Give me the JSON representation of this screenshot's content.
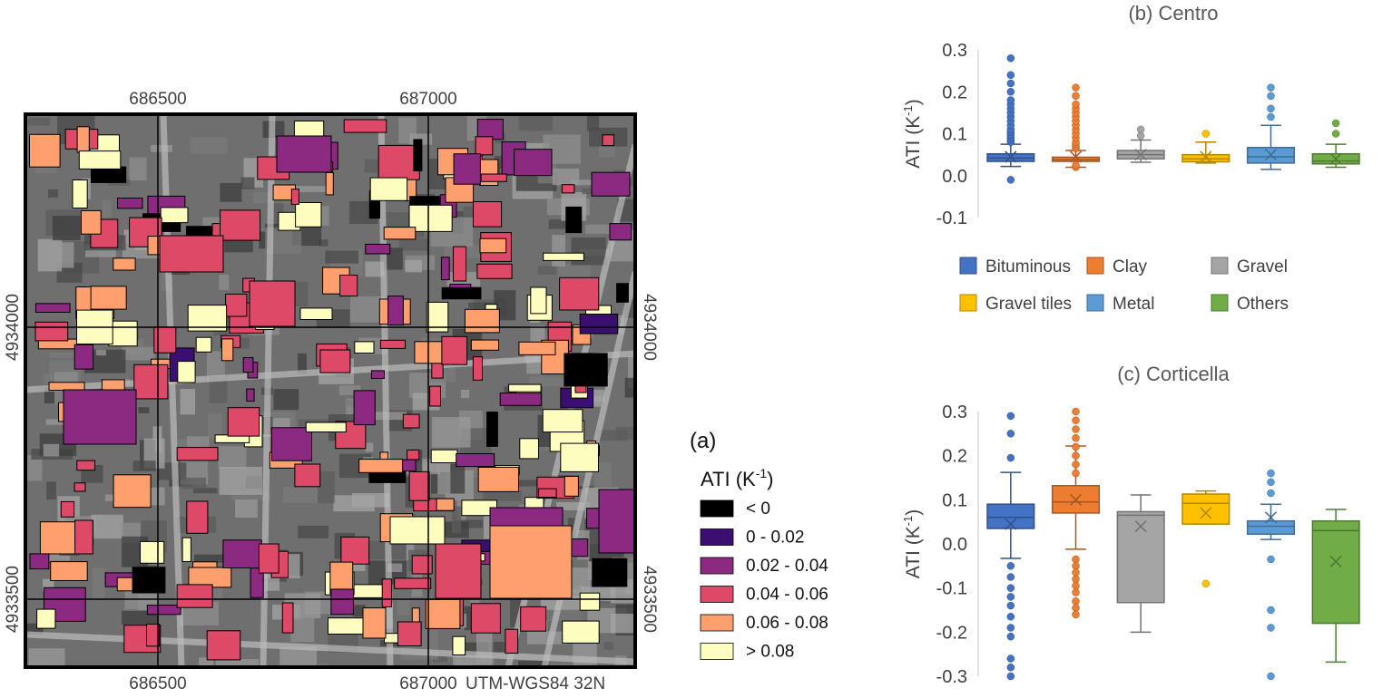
{
  "map": {
    "panel_label": "(a)",
    "top_ticks": [
      "686500",
      "687000"
    ],
    "bottom_ticks": [
      "686500",
      "687000"
    ],
    "left_ticks": [
      "4934000",
      "4933500"
    ],
    "right_ticks": [
      "4934000",
      "4933500"
    ],
    "crs_label": "UTM-WGS84 32N",
    "legend": {
      "title_base": "ATI  (K",
      "title_sup": "-1",
      "title_end": ")",
      "classes": [
        {
          "label": "< 0",
          "color": "#000000"
        },
        {
          "label": "0 - 0.02",
          "color": "#3b0f70"
        },
        {
          "label": "0.02 - 0.04",
          "color": "#8c2981"
        },
        {
          "label": "0.04 - 0.06",
          "color": "#de4968"
        },
        {
          "label": "0.06 - 0.08",
          "color": "#fe9f6d"
        },
        {
          "label": "> 0.08",
          "color": "#fcfdbf"
        }
      ]
    }
  },
  "chart_data": [
    {
      "type": "box",
      "title": "(b) Centro",
      "ylabel_base": "ATI (K",
      "ylabel_sup": "-1",
      "ylabel_end": ")",
      "ylim": [
        -0.1,
        0.3
      ],
      "yticks": [
        "0.3",
        "0.2",
        "0.1",
        "0.0",
        "-0.1"
      ],
      "grid": false,
      "legend_position": "bottom",
      "series": [
        {
          "name": "Bituminous",
          "color": "#4472c4",
          "whisker_low": 0.022,
          "q1": 0.034,
          "median": 0.042,
          "q3": 0.052,
          "whisker_high": 0.075,
          "mean": 0.045,
          "outliers": [
            -0.01,
            0.08,
            0.085,
            0.09,
            0.095,
            0.1,
            0.105,
            0.11,
            0.12,
            0.13,
            0.14,
            0.15,
            0.16,
            0.17,
            0.18,
            0.2,
            0.22,
            0.24,
            0.28
          ]
        },
        {
          "name": "Clay",
          "color": "#ed7d31",
          "whisker_low": 0.02,
          "q1": 0.034,
          "median": 0.038,
          "q3": 0.044,
          "whisker_high": 0.06,
          "mean": 0.045,
          "outliers": [
            0.02,
            0.025,
            0.065,
            0.07,
            0.075,
            0.08,
            0.09,
            0.1,
            0.11,
            0.12,
            0.13,
            0.14,
            0.15,
            0.16,
            0.17,
            0.19,
            0.21
          ]
        },
        {
          "name": "Gravel",
          "color": "#a5a5a5",
          "whisker_low": 0.032,
          "q1": 0.04,
          "median": 0.05,
          "q3": 0.06,
          "whisker_high": 0.085,
          "mean": 0.05,
          "outliers": [
            0.095,
            0.11
          ]
        },
        {
          "name": "Gravel tiles",
          "color": "#ffc000",
          "whisker_low": 0.03,
          "q1": 0.033,
          "median": 0.04,
          "q3": 0.05,
          "whisker_high": 0.08,
          "mean": 0.045,
          "outliers": [
            0.1
          ]
        },
        {
          "name": "Metal",
          "color": "#5b9bd5",
          "whisker_low": 0.015,
          "q1": 0.03,
          "median": 0.045,
          "q3": 0.067,
          "whisker_high": 0.12,
          "mean": 0.05,
          "outliers": [
            0.14,
            0.16,
            0.19,
            0.21
          ]
        },
        {
          "name": "Others",
          "color": "#70ad47",
          "whisker_low": 0.02,
          "q1": 0.028,
          "median": 0.035,
          "q3": 0.052,
          "whisker_high": 0.075,
          "mean": 0.04,
          "outliers": [
            0.1,
            0.125
          ]
        }
      ]
    },
    {
      "type": "box",
      "title": "(c) Corticella",
      "ylabel_base": "ATI (K",
      "ylabel_sup": "-1",
      "ylabel_end": ")",
      "ylim": [
        -0.3,
        0.3
      ],
      "yticks": [
        "0.3",
        "0.2",
        "0.1",
        "0.0",
        "-0.1",
        "-0.2",
        "-0.3"
      ],
      "grid": false,
      "series": [
        {
          "name": "Bituminous",
          "color": "#4472c4",
          "whisker_low": -0.033,
          "q1": 0.035,
          "median": 0.06,
          "q3": 0.09,
          "whisker_high": 0.162,
          "mean": 0.045,
          "outliers": [
            0.29,
            0.25,
            0.195,
            -0.05,
            -0.075,
            -0.1,
            -0.12,
            -0.14,
            -0.165,
            -0.19,
            -0.21,
            -0.26,
            -0.28,
            -0.3
          ]
        },
        {
          "name": "Clay",
          "color": "#ed7d31",
          "whisker_low": -0.012,
          "q1": 0.07,
          "median": 0.095,
          "q3": 0.132,
          "whisker_high": 0.222,
          "mean": 0.1,
          "outliers": [
            0.3,
            0.28,
            0.26,
            0.24,
            0.22,
            0.2,
            0.18,
            0.16,
            -0.035,
            -0.05,
            -0.065,
            -0.08,
            -0.095,
            -0.11,
            -0.13,
            -0.145,
            -0.16
          ]
        },
        {
          "name": "Gravel",
          "color": "#a5a5a5",
          "whisker_low": -0.2,
          "q1": -0.133,
          "median": 0.065,
          "q3": 0.073,
          "whisker_high": 0.111,
          "mean": 0.04,
          "outliers": []
        },
        {
          "name": "Gravel tiles",
          "color": "#ffc000",
          "whisker_low": 0.045,
          "q1": 0.045,
          "median": 0.092,
          "q3": 0.113,
          "whisker_high": 0.12,
          "mean": 0.07,
          "outliers": [
            -0.09
          ]
        },
        {
          "name": "Metal",
          "color": "#5b9bd5",
          "whisker_low": 0.01,
          "q1": 0.022,
          "median": 0.04,
          "q3": 0.052,
          "whisker_high": 0.09,
          "mean": 0.06,
          "outliers": [
            0.16,
            0.14,
            0.115,
            -0.035,
            -0.15,
            -0.19,
            -0.3
          ]
        },
        {
          "name": "Others",
          "color": "#70ad47",
          "whisker_low": -0.268,
          "q1": -0.18,
          "median": 0.03,
          "q3": 0.052,
          "whisker_high": 0.078,
          "mean": -0.04,
          "outliers": []
        }
      ]
    }
  ]
}
